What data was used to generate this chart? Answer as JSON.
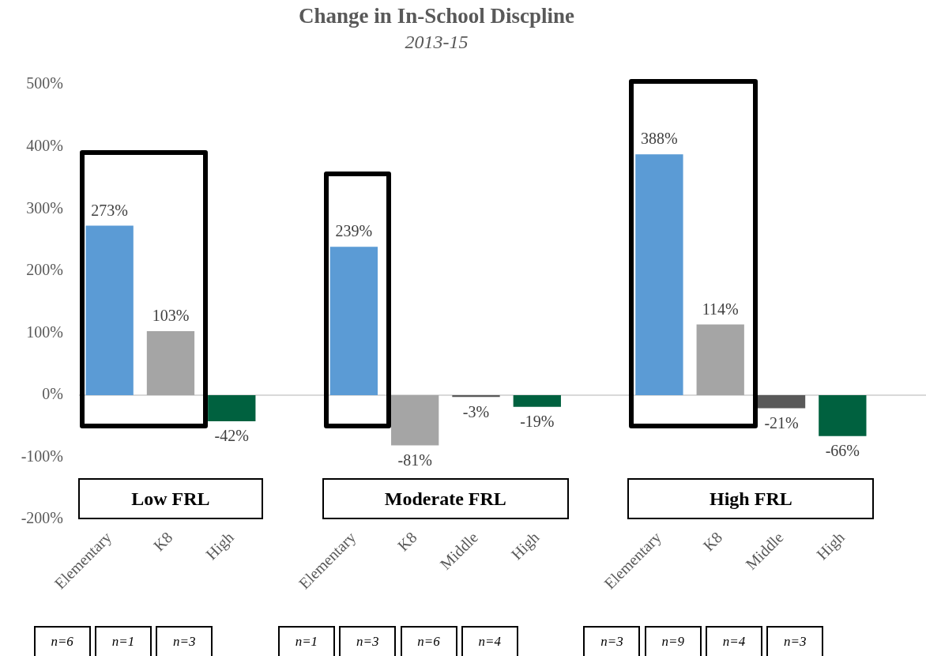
{
  "chart_data": {
    "type": "bar",
    "title": "Change in In-School Discpline",
    "subtitle": "2013-15",
    "categories": [
      "Elementary",
      "K8",
      "High",
      null,
      "Elementary",
      "K8",
      "Middle",
      "High",
      null,
      "Elementary",
      "K8",
      "Middle",
      "High"
    ],
    "values": [
      273,
      103,
      -42,
      null,
      239,
      -81,
      -3,
      -19,
      null,
      388,
      114,
      -21,
      -66
    ],
    "colors": [
      "#5b9bd5",
      "#a5a5a5",
      "#00613f",
      "#ffffff",
      "#5b9bd5",
      "#a5a5a5",
      "#595959",
      "#00613f",
      "#ffffff",
      "#5b9bd5",
      "#a5a5a5",
      "#595959",
      "#00613f"
    ],
    "value_labels": [
      "273%",
      "103%",
      "-42%",
      null,
      "239%",
      "-81%",
      "-3%",
      "-19%",
      null,
      "388%",
      "114%",
      "-21%",
      "-66%"
    ],
    "ylim": [
      -200,
      500
    ],
    "yticks": [
      {
        "value": -200,
        "label": "-200%"
      },
      {
        "value": -100,
        "label": "-100%"
      },
      {
        "value": 0,
        "label": "0%"
      },
      {
        "value": 100,
        "label": "100%"
      },
      {
        "value": 200,
        "label": "200%"
      },
      {
        "value": 300,
        "label": "300%"
      },
      {
        "value": 400,
        "label": "400%"
      },
      {
        "value": 500,
        "label": "500%"
      }
    ],
    "grid": false,
    "legend": false,
    "ref_lines": [
      {
        "axis": "y",
        "value": 0,
        "color": "#d9d9d9"
      }
    ],
    "annotations": [
      "Low FRL",
      "Moderate FRL",
      "High FRL",
      "n=6",
      "n=1",
      "n=3",
      "n=1",
      "n=3",
      "n=6",
      "n=4",
      "n=3",
      "n=9",
      "n=4",
      "n=3"
    ]
  }
}
